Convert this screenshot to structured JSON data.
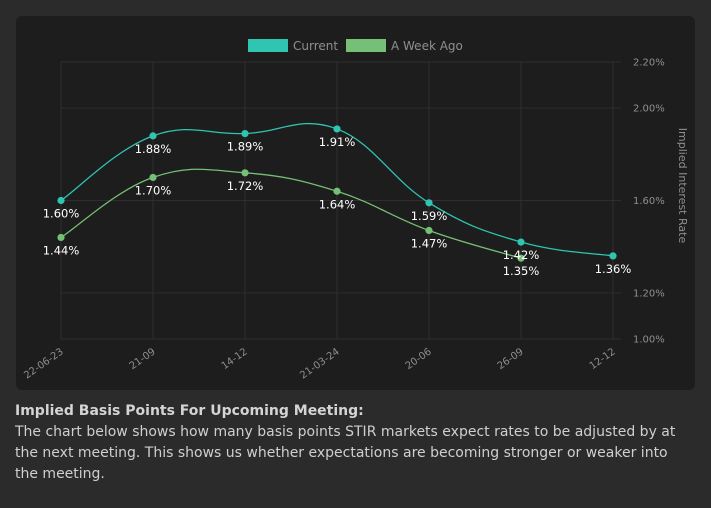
{
  "chart_data": {
    "type": "line",
    "categories": [
      "22-06-23",
      "21-09",
      "14-12",
      "21-03-24",
      "20-06",
      "26-09",
      "12-12"
    ],
    "series": [
      {
        "name": "Current",
        "color": "#2fc5b0",
        "values": [
          1.6,
          1.88,
          1.89,
          1.91,
          1.59,
          1.42,
          1.36
        ]
      },
      {
        "name": "A Week Ago",
        "color": "#76bf76",
        "values": [
          1.44,
          1.7,
          1.72,
          1.64,
          1.47,
          1.35,
          null
        ]
      }
    ],
    "data_labels": [
      [
        "1.60%",
        "1.88%",
        "1.89%",
        "1.91%",
        "1.59%",
        "1.42%",
        "1.36%"
      ],
      [
        "1.44%",
        "1.70%",
        "1.72%",
        "1.64%",
        "1.47%",
        "1.35%",
        null
      ]
    ],
    "y_ticks": [
      {
        "value": 2.2,
        "label": "2.20%"
      },
      {
        "value": 2.0,
        "label": "2.00%"
      },
      {
        "value": 1.6,
        "label": "1.60%"
      },
      {
        "value": 1.2,
        "label": "1.20%"
      },
      {
        "value": 1.0,
        "label": "1.00%"
      }
    ],
    "ylabel": "Implied Interest Rate",
    "ylim": [
      1.0,
      2.2
    ],
    "y_position": "right",
    "legend_position": "top",
    "grid": true
  },
  "description": {
    "title": "Implied Basis Points For Upcoming Meeting:",
    "body": "The chart below shows how many basis points STIR markets expect rates to be adjusted by at the next meeting. This shows us whether expectations are becoming stronger or weaker into the meeting."
  }
}
